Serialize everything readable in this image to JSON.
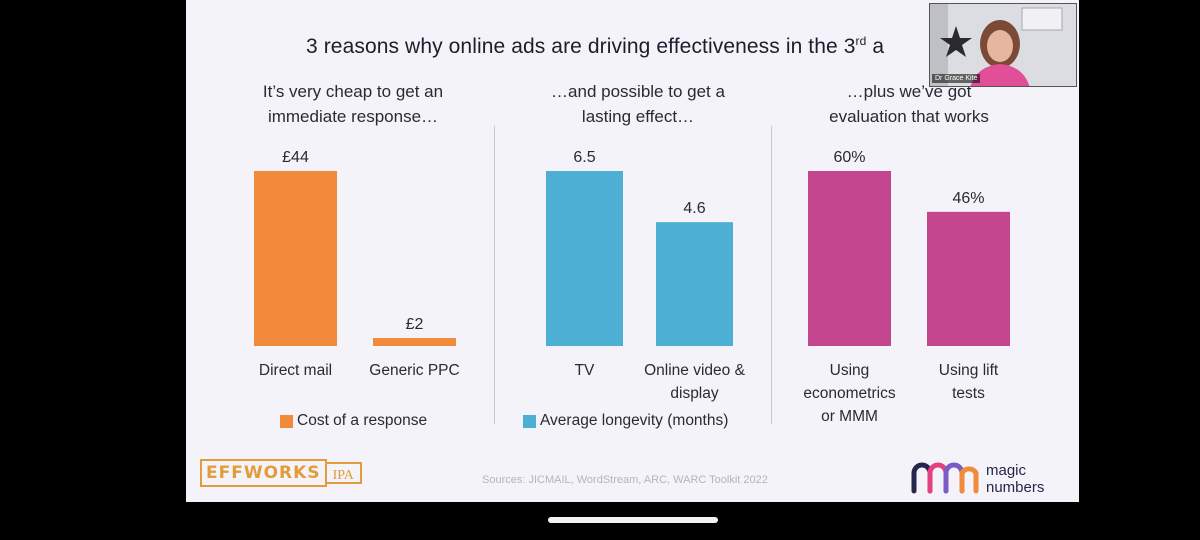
{
  "slide": {
    "title_main": "3 reasons why online ads are driving effectiveness in the 3",
    "title_sup": "rd",
    "title_tail": " a",
    "sources": "Sources: JICMAIL, WordStream, ARC, WARC Toolkit 2022",
    "logos": {
      "effworks": "EFFWORKS",
      "ipa": "IPA",
      "magic_numbers": [
        "magic",
        "numbers"
      ]
    },
    "video": {
      "name": "Dr Grace Kite"
    }
  },
  "chart_data": [
    {
      "type": "bar",
      "title": [
        "It’s very cheap to get an",
        "immediate response…"
      ],
      "categories": [
        [
          "Direct mail"
        ],
        [
          "Generic PPC"
        ]
      ],
      "values": [
        44,
        2
      ],
      "value_labels": [
        "£44",
        "£2"
      ],
      "legend": "Cost of a response",
      "color": "#f18a3a",
      "ylim": [
        0,
        44
      ]
    },
    {
      "type": "bar",
      "title": [
        "…and possible to get a",
        "lasting effect…"
      ],
      "categories": [
        [
          "TV"
        ],
        [
          "Online video &",
          "display"
        ]
      ],
      "values": [
        6.5,
        4.6
      ],
      "value_labels": [
        "6.5",
        "4.6"
      ],
      "legend": "Average longevity (months)",
      "color": "#4eafd5",
      "ylim": [
        0,
        6.5
      ]
    },
    {
      "type": "bar",
      "title": [
        "…plus we’ve got",
        "evaluation that works"
      ],
      "categories": [
        [
          "Using",
          "econometrics",
          "or MMM"
        ],
        [
          "Using lift",
          "tests"
        ]
      ],
      "values": [
        60,
        46
      ],
      "value_labels": [
        "60%",
        "46%"
      ],
      "color": "#c4468f",
      "ylim": [
        0,
        60
      ]
    }
  ]
}
